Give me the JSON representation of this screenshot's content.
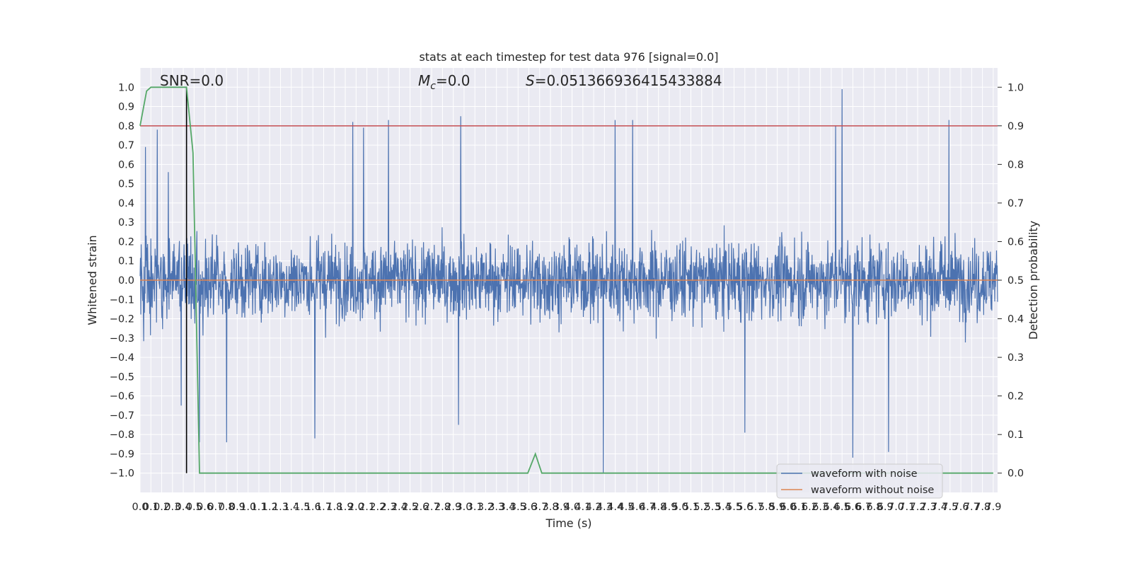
{
  "chart_data": {
    "type": "line",
    "title": "stats at each timestep for test data 976 [signal=0.0]",
    "xlabel": "Time (s)",
    "ylabel_left": "Whitened strain",
    "ylabel_right": "Detection probability",
    "annotations": {
      "snr": "SNR=0.0",
      "mc_symbol": "M",
      "mc_sub": "c",
      "mc_value": "=0.0",
      "s_symbol": "S",
      "s_value": "=0.051366936415433884"
    },
    "xlim": [
      0.0,
      7.94
    ],
    "ylim_left": [
      -1.1,
      1.1
    ],
    "ylim_right": [
      -0.05,
      1.05
    ],
    "x_ticks": [
      "0.0",
      "0.1",
      "0.2",
      "0.3",
      "0.4",
      "0.5",
      "0.6",
      "0.7",
      "0.8",
      "0.9",
      "1.0",
      "1.1",
      "1.2",
      "1.3",
      "1.4",
      "1.5",
      "1.6",
      "1.7",
      "1.8",
      "1.9",
      "2.0",
      "2.1",
      "2.2",
      "2.3",
      "2.4",
      "2.5",
      "2.6",
      "2.7",
      "2.8",
      "2.9",
      "3.0",
      "3.1",
      "3.2",
      "3.3",
      "3.4",
      "3.5",
      "3.6",
      "3.7",
      "3.8",
      "3.9",
      "4.0",
      "4.1",
      "4.2",
      "4.3",
      "4.4",
      "4.5",
      "4.6",
      "4.7",
      "4.8",
      "4.9",
      "5.0",
      "5.1",
      "5.2",
      "5.3",
      "5.4",
      "5.5",
      "5.6",
      "5.7",
      "5.8",
      "5.9",
      "6.0",
      "6.1",
      "6.2",
      "6.3",
      "6.4",
      "6.5",
      "6.6",
      "6.7",
      "6.8",
      "6.9",
      "7.0",
      "7.1",
      "7.2",
      "7.3",
      "7.4",
      "7.5",
      "7.6",
      "7.7",
      "7.8",
      "7.9"
    ],
    "y_ticks_left": [
      "−1.0",
      "−0.9",
      "−0.8",
      "−0.7",
      "−0.6",
      "−0.5",
      "−0.4",
      "−0.3",
      "−0.2",
      "−0.1",
      "0.0",
      "0.1",
      "0.2",
      "0.3",
      "0.4",
      "0.5",
      "0.6",
      "0.7",
      "0.8",
      "0.9",
      "1.0"
    ],
    "y_ticks_right": [
      "0.0",
      "0.1",
      "0.2",
      "0.3",
      "0.4",
      "0.5",
      "0.6",
      "0.7",
      "0.8",
      "0.9",
      "1.0"
    ],
    "series": [
      {
        "name": "waveform with noise",
        "color": "#4c72b0",
        "axis": "left",
        "description_values": {
          "typical_envelope": [
            -0.4,
            0.4
          ],
          "peak_max": 0.99,
          "peak_min": -1.0
        },
        "peaks": [
          {
            "x": 0.05,
            "y": 0.69
          },
          {
            "x": 0.16,
            "y": 0.78
          },
          {
            "x": 0.26,
            "y": 0.56
          },
          {
            "x": 0.38,
            "y": -0.65
          },
          {
            "x": 0.55,
            "y": -0.84
          },
          {
            "x": 0.8,
            "y": 0.68
          },
          {
            "x": 0.8,
            "y": -0.84
          },
          {
            "x": 1.62,
            "y": 0.84
          },
          {
            "x": 1.62,
            "y": -0.82
          },
          {
            "x": 1.97,
            "y": 0.82
          },
          {
            "x": 2.07,
            "y": 0.79
          },
          {
            "x": 2.3,
            "y": 0.83
          },
          {
            "x": 2.97,
            "y": 0.85
          },
          {
            "x": 2.95,
            "y": -0.75
          },
          {
            "x": 4.29,
            "y": -1.0
          },
          {
            "x": 4.4,
            "y": 0.83
          },
          {
            "x": 4.56,
            "y": 0.83
          },
          {
            "x": 6.44,
            "y": 0.8
          },
          {
            "x": 6.5,
            "y": 0.99
          },
          {
            "x": 6.6,
            "y": -0.92
          },
          {
            "x": 6.93,
            "y": -0.89
          },
          {
            "x": 7.49,
            "y": 0.83
          },
          {
            "x": 5.6,
            "y": -0.79
          }
        ]
      },
      {
        "name": "waveform without noise",
        "color": "#dd8452",
        "axis": "left",
        "x": [
          0.0,
          7.94
        ],
        "y": [
          0.0,
          0.0
        ]
      },
      {
        "name": "",
        "color": "#55a868",
        "axis": "right",
        "x": [
          0.0,
          0.06,
          0.1,
          0.2,
          0.3,
          0.43,
          0.49,
          0.55,
          0.59,
          3.59,
          3.66,
          3.72,
          3.78,
          7.9
        ],
        "y": [
          0.9,
          0.99,
          1.0,
          1.0,
          1.0,
          1.0,
          0.83,
          0.0,
          0.0,
          0.0,
          0.05,
          0.0,
          0.0,
          0.0
        ]
      }
    ],
    "reference_lines": [
      {
        "orientation": "horizontal",
        "axis": "right",
        "value": 0.9,
        "color": "#c44e52"
      },
      {
        "orientation": "vertical",
        "value": 0.43,
        "color": "#000000",
        "y_range_left": [
          -1.0,
          1.0
        ]
      }
    ],
    "grid": true,
    "legend_position": "lower right",
    "colors": {
      "background": "#eaeaf2",
      "grid": "#ffffff",
      "blue": "#4c72b0",
      "orange": "#dd8452",
      "green": "#55a868",
      "red": "#c44e52",
      "black": "#000000"
    }
  }
}
